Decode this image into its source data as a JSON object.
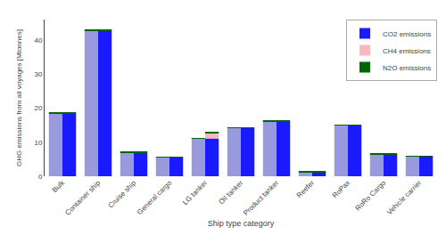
{
  "chart_data": {
    "type": "bar",
    "stacked": true,
    "grid": false,
    "legend": "upper right",
    "xlabel": "Ship type category",
    "ylabel": "GHG emissions from all voyages [Mtonnes]",
    "categories": [
      "Bulk",
      "Container ship",
      "Cruise ship",
      "General cargo",
      "LG tanker",
      "Oil tanker",
      "Product tanker",
      "Reefer",
      "RoPax",
      "RoRo Cargo",
      "Vehicle carrier"
    ],
    "ylim": [
      0,
      46
    ],
    "yticks": [
      0,
      10,
      20,
      30,
      40
    ],
    "series": [
      [
        {
          "color": "#9999dd",
          "values": [
            18.5,
            42.8,
            7.0,
            5.7,
            11.1,
            14.2,
            16.2,
            1.3,
            14.9,
            6.5,
            5.8
          ]
        },
        {
          "color": "#006400",
          "values": [
            0.15,
            0.35,
            0.06,
            0.05,
            0.09,
            0.12,
            0.13,
            0.01,
            0.12,
            0.05,
            0.05
          ]
        }
      ],
      [
        {
          "name": "CO2 emissions",
          "color": "#1a1aff",
          "values": [
            18.5,
            42.8,
            7.0,
            5.7,
            11.1,
            14.2,
            16.2,
            1.3,
            14.9,
            6.5,
            5.8
          ]
        },
        {
          "name": "CH4 emissions",
          "color": "#ffb6c1",
          "values": [
            0.0,
            0.0,
            0.0,
            0.0,
            1.65,
            0.0,
            0.0,
            0.0,
            0.0,
            0.0,
            0.0
          ]
        },
        {
          "name": "N2O emissions",
          "color": "#006400",
          "values": [
            0.15,
            0.35,
            0.06,
            0.05,
            0.09,
            0.12,
            0.13,
            0.01,
            0.12,
            0.05,
            0.05
          ]
        }
      ]
    ]
  }
}
